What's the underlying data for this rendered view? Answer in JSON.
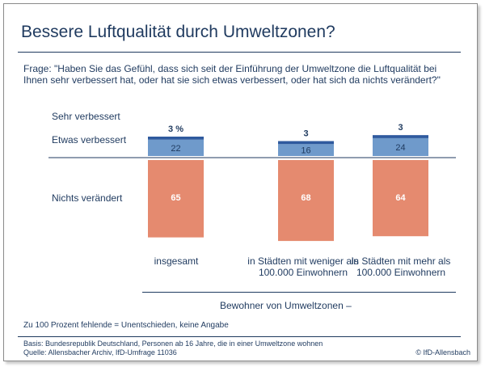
{
  "title": "Bessere Luftqualität durch Umweltzonen?",
  "question": "Frage: \"Haben Sie das Gefühl, dass sich seit der Einführung der Umweltzone die Luftqualität bei Ihnen sehr verbessert hat, oder hat sie sich etwas verbessert, oder hat sich da nichts verändert?\"",
  "chart_data": {
    "type": "bar",
    "stacked": true,
    "unit": "%",
    "categories": [
      "insgesamt",
      "in Städten mit weniger als 100.000 Einwohnern",
      "in Städten mit mehr als 100.000 Einwohnern"
    ],
    "group_label": "Bewohner von Umweltzonen –",
    "series": [
      {
        "name": "Sehr verbessert",
        "values": [
          3,
          3,
          3
        ],
        "labels": [
          "3 %",
          "3",
          "3"
        ],
        "color": "#2f5a9e"
      },
      {
        "name": "Etwas verbessert",
        "values": [
          22,
          16,
          24
        ],
        "labels": [
          "22",
          "16",
          "24"
        ],
        "color": "#6f9acb"
      },
      {
        "name": "Nichts verändert",
        "values": [
          65,
          68,
          64
        ],
        "labels": [
          "65",
          "68",
          "64"
        ],
        "color": "#e58a6f"
      }
    ]
  },
  "footnote": "Zu 100 Prozent fehlende = Unentschieden, keine Angabe",
  "basis": "Basis: Bundesrepublik Deutschland, Personen ab 16 Jahre, die in einer Umweltzone wohnen",
  "source": "Quelle: Allensbacher Archiv, IfD-Umfrage 11036",
  "copyright": "© IfD-Allensbach",
  "colors": {
    "text": "#1f3a5f",
    "dark_blue": "#2f5a9e",
    "light_blue": "#6f9acb",
    "salmon": "#e58a6f"
  }
}
